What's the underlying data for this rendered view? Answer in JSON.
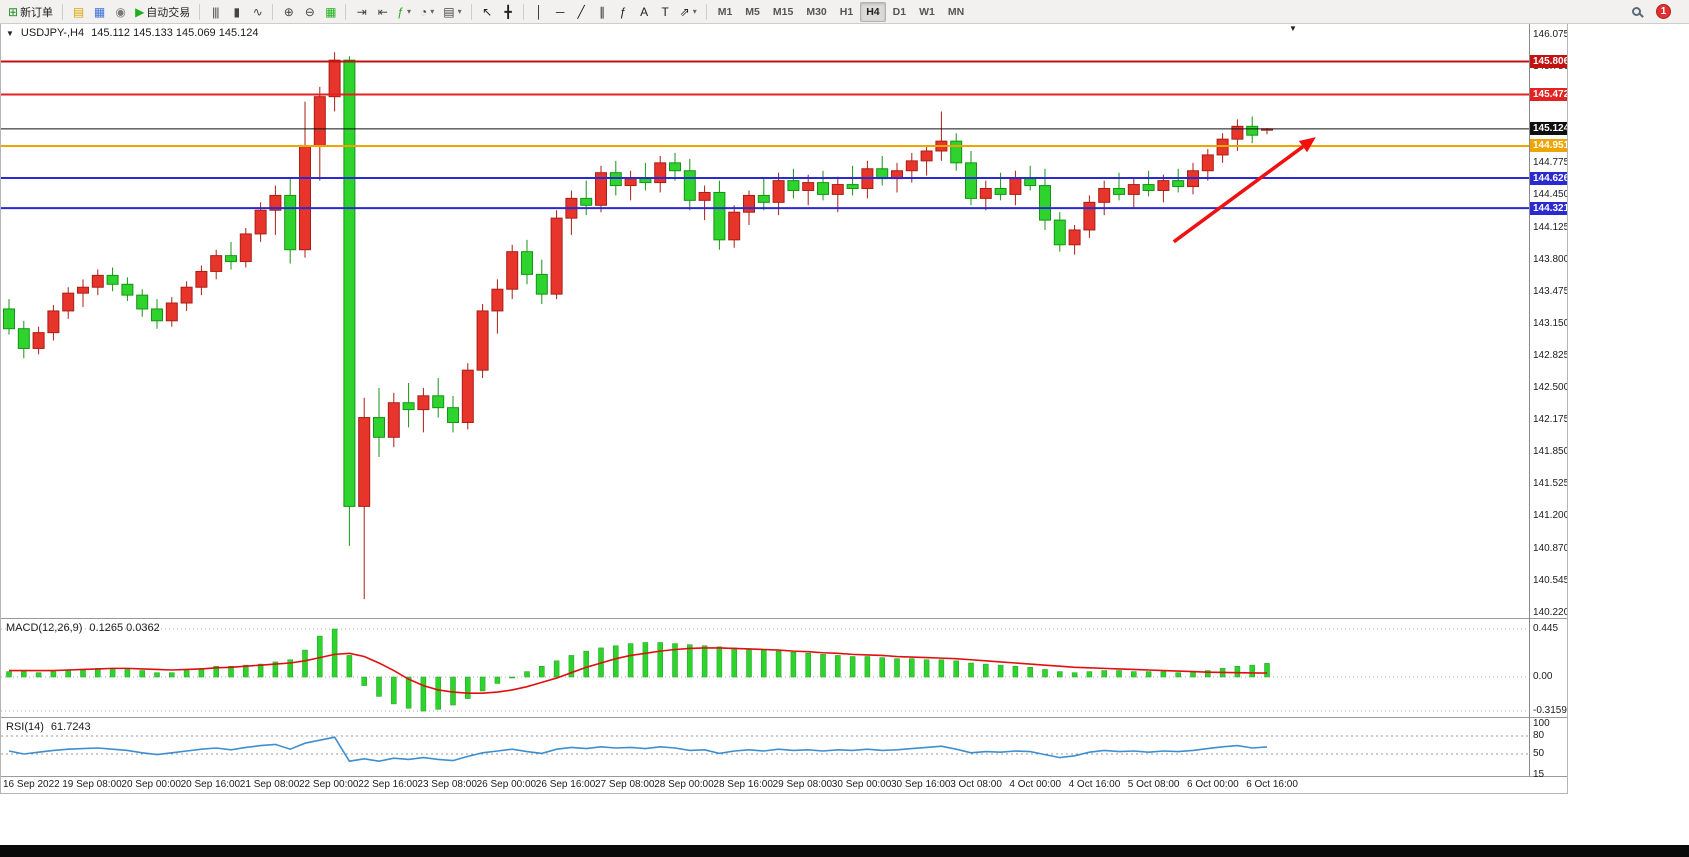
{
  "toolbar": {
    "groups": [
      {
        "name": "orders",
        "items": [
          {
            "name": "new-order",
            "icon_name": "new-order-icon",
            "glyph": "⊞",
            "glyph_color": "#1f8f1f",
            "label": "新订单"
          }
        ]
      },
      {
        "name": "windows",
        "items": [
          {
            "name": "charts-folder",
            "icon_name": "folder-icon",
            "glyph": "▤",
            "glyph_color": "#d9a400"
          },
          {
            "name": "data-window",
            "icon_name": "data-window-icon",
            "glyph": "▦",
            "glyph_color": "#3a6fd8"
          },
          {
            "name": "alerts",
            "icon_name": "sound-icon",
            "glyph": "◉",
            "glyph_color": "#7a7a7a"
          },
          {
            "name": "autotrading",
            "icon_name": "play-icon",
            "glyph": "▶",
            "glyph_color": "#1faf1f",
            "label": "自动交易"
          }
        ]
      },
      {
        "name": "chart-types",
        "items": [
          {
            "name": "bar-chart",
            "icon_name": "bar-chart-icon",
            "glyph": "|||",
            "glyph_color": "#444444"
          },
          {
            "name": "candlestick-chart",
            "icon_name": "candlestick-icon",
            "glyph": "▮",
            "glyph_color": "#444444"
          },
          {
            "name": "line-chart",
            "icon_name": "line-chart-icon",
            "glyph": "∿",
            "glyph_color": "#444444"
          }
        ]
      },
      {
        "name": "zoom",
        "items": [
          {
            "name": "zoom-in",
            "icon_name": "zoom-in-icon",
            "glyph": "⊕",
            "glyph_color": "#444444"
          },
          {
            "name": "zoom-out",
            "icon_name": "zoom-out-icon",
            "glyph": "⊖",
            "glyph_color": "#444444"
          },
          {
            "name": "tile-windows",
            "icon_name": "tile-windows-icon",
            "glyph": "▦",
            "glyph_color": "#1faf1f"
          }
        ]
      },
      {
        "name": "chart-tools",
        "items": [
          {
            "name": "auto-scroll",
            "icon_name": "auto-scroll-icon",
            "glyph": "⇥",
            "glyph_color": "#444444"
          },
          {
            "name": "chart-shift",
            "icon_name": "chart-shift-icon",
            "glyph": "⇤",
            "glyph_color": "#444444"
          },
          {
            "name": "indicators",
            "icon_name": "indicators-icon",
            "glyph": "ƒ",
            "glyph_color": "#1faf1f",
            "dropdown": true
          },
          {
            "name": "periods",
            "icon_name": "clock-icon",
            "glyph": "◔",
            "glyph_color": "#444444",
            "dropdown": true
          },
          {
            "name": "templates",
            "icon_name": "templates-icon",
            "glyph": "▤",
            "glyph_color": "#444444",
            "dropdown": true
          }
        ]
      },
      {
        "name": "pointer",
        "items": [
          {
            "name": "cursor",
            "icon_name": "cursor-icon",
            "glyph": "↖",
            "glyph_color": "#222222"
          },
          {
            "name": "crosshair",
            "icon_name": "crosshair-icon",
            "glyph": "╋",
            "glyph_color": "#222222"
          }
        ]
      },
      {
        "name": "drawing",
        "items": [
          {
            "name": "vertical-line",
            "icon_name": "vertical-line-icon",
            "glyph": "│",
            "glyph_color": "#222222"
          },
          {
            "name": "horizontal-line",
            "icon_name": "horizontal-line-icon",
            "glyph": "─",
            "glyph_color": "#222222"
          },
          {
            "name": "trendline",
            "icon_name": "trendline-icon",
            "glyph": "╱",
            "glyph_color": "#222222"
          },
          {
            "name": "equidistant-channel",
            "icon_name": "channel-icon",
            "glyph": "∥",
            "glyph_color": "#222222"
          },
          {
            "name": "fibonacci",
            "icon_name": "fibonacci-icon",
            "glyph": "ƒ",
            "glyph_color": "#222222"
          },
          {
            "name": "text",
            "icon_name": "text-icon",
            "glyph": "A",
            "glyph_color": "#222222"
          },
          {
            "name": "text-label",
            "icon_name": "text-label-icon",
            "glyph": "T",
            "glyph_color": "#222222"
          },
          {
            "name": "arrows",
            "icon_name": "arrow-objects-icon",
            "glyph": "⇗",
            "glyph_color": "#222222",
            "dropdown": true
          }
        ]
      }
    ],
    "timeframes": [
      "M1",
      "M5",
      "M15",
      "M30",
      "H1",
      "H4",
      "D1",
      "W1",
      "MN"
    ],
    "active_timeframe": "H4",
    "notification_count": "1"
  },
  "chart": {
    "title_symbol": "USDJPY-,H4",
    "title_ohlc": "145.112 145.133 145.069 145.124"
  },
  "chart_data": {
    "type": "candlestick",
    "symbol": "USDJPY-",
    "timeframe": "H4",
    "current_bar": {
      "open": 145.112,
      "high": 145.133,
      "low": 145.069,
      "close": 145.124
    },
    "up_color": "#e8352c",
    "down_color": "#2ed32e",
    "price_axis_labels": [
      "146.075",
      "145.750",
      "145.425",
      "145.100",
      "144.775",
      "144.450",
      "144.125",
      "143.800",
      "143.475",
      "143.150",
      "142.825",
      "142.500",
      "142.175",
      "141.850",
      "141.525",
      "141.200",
      "140.870",
      "140.545",
      "140.220"
    ],
    "time_axis_labels": [
      "16 Sep 2022",
      "19 Sep 08:00",
      "20 Sep 00:00",
      "20 Sep 16:00",
      "21 Sep 08:00",
      "22 Sep 00:00",
      "22 Sep 16:00",
      "23 Sep 08:00",
      "26 Sep 00:00",
      "26 Sep 16:00",
      "27 Sep 08:00",
      "28 Sep 00:00",
      "28 Sep 16:00",
      "29 Sep 08:00",
      "30 Sep 00:00",
      "30 Sep 16:00",
      "3 Oct 08:00",
      "4 Oct 00:00",
      "4 Oct 16:00",
      "5 Oct 08:00",
      "6 Oct 00:00",
      "6 Oct 16:00"
    ],
    "candles": [
      [
        143.3,
        143.4,
        143.04,
        143.1
      ],
      [
        143.1,
        143.18,
        142.8,
        142.9
      ],
      [
        142.9,
        143.12,
        142.84,
        143.06
      ],
      [
        143.06,
        143.34,
        142.98,
        143.28
      ],
      [
        143.28,
        143.52,
        143.2,
        143.46
      ],
      [
        143.46,
        143.6,
        143.32,
        143.52
      ],
      [
        143.52,
        143.7,
        143.44,
        143.64
      ],
      [
        143.64,
        143.72,
        143.48,
        143.55
      ],
      [
        143.55,
        143.62,
        143.38,
        143.44
      ],
      [
        143.44,
        143.5,
        143.22,
        143.3
      ],
      [
        143.3,
        143.4,
        143.1,
        143.18
      ],
      [
        143.18,
        143.42,
        143.12,
        143.36
      ],
      [
        143.36,
        143.58,
        143.28,
        143.52
      ],
      [
        143.52,
        143.74,
        143.44,
        143.68
      ],
      [
        143.68,
        143.9,
        143.6,
        143.84
      ],
      [
        143.84,
        143.98,
        143.7,
        143.78
      ],
      [
        143.78,
        144.12,
        143.72,
        144.06
      ],
      [
        144.06,
        144.38,
        143.98,
        144.3
      ],
      [
        144.3,
        144.55,
        144.05,
        144.45
      ],
      [
        144.45,
        144.62,
        143.76,
        143.9
      ],
      [
        143.9,
        145.4,
        143.82,
        144.95
      ],
      [
        144.95,
        145.55,
        144.6,
        145.45
      ],
      [
        145.45,
        145.9,
        145.3,
        145.82
      ],
      [
        145.82,
        145.86,
        140.9,
        141.3
      ],
      [
        141.3,
        142.4,
        140.36,
        142.2
      ],
      [
        142.2,
        142.5,
        141.8,
        142.0
      ],
      [
        142.0,
        142.45,
        141.9,
        142.35
      ],
      [
        142.35,
        142.55,
        142.1,
        142.28
      ],
      [
        142.28,
        142.5,
        142.05,
        142.42
      ],
      [
        142.42,
        142.6,
        142.2,
        142.3
      ],
      [
        142.3,
        142.42,
        142.05,
        142.15
      ],
      [
        142.15,
        142.75,
        142.08,
        142.68
      ],
      [
        142.68,
        143.35,
        142.6,
        143.28
      ],
      [
        143.28,
        143.6,
        143.05,
        143.5
      ],
      [
        143.5,
        143.95,
        143.4,
        143.88
      ],
      [
        143.88,
        144.0,
        143.55,
        143.65
      ],
      [
        143.65,
        143.8,
        143.35,
        143.45
      ],
      [
        143.45,
        144.3,
        143.4,
        144.22
      ],
      [
        144.22,
        144.5,
        144.05,
        144.42
      ],
      [
        144.42,
        144.6,
        144.25,
        144.35
      ],
      [
        144.35,
        144.75,
        144.28,
        144.68
      ],
      [
        144.68,
        144.8,
        144.45,
        144.55
      ],
      [
        144.55,
        144.7,
        144.4,
        144.62
      ],
      [
        144.62,
        144.78,
        144.5,
        144.58
      ],
      [
        144.58,
        144.85,
        144.48,
        144.78
      ],
      [
        144.78,
        144.88,
        144.6,
        144.7
      ],
      [
        144.7,
        144.82,
        144.3,
        144.4
      ],
      [
        144.4,
        144.55,
        144.2,
        144.48
      ],
      [
        144.48,
        144.6,
        143.9,
        144.0
      ],
      [
        144.0,
        144.35,
        143.92,
        144.28
      ],
      [
        144.28,
        144.5,
        144.15,
        144.45
      ],
      [
        144.45,
        144.62,
        144.3,
        144.38
      ],
      [
        144.38,
        144.68,
        144.25,
        144.6
      ],
      [
        144.6,
        144.72,
        144.42,
        144.5
      ],
      [
        144.5,
        144.66,
        144.35,
        144.58
      ],
      [
        144.58,
        144.7,
        144.4,
        144.46
      ],
      [
        144.46,
        144.64,
        144.28,
        144.56
      ],
      [
        144.56,
        144.75,
        144.45,
        144.52
      ],
      [
        144.52,
        144.8,
        144.42,
        144.72
      ],
      [
        144.72,
        144.85,
        144.55,
        144.62
      ],
      [
        144.62,
        144.78,
        144.48,
        144.7
      ],
      [
        144.7,
        144.88,
        144.58,
        144.8
      ],
      [
        144.8,
        144.95,
        144.65,
        144.9
      ],
      [
        144.9,
        145.3,
        144.8,
        145.0
      ],
      [
        145.0,
        145.08,
        144.7,
        144.78
      ],
      [
        144.78,
        144.9,
        144.35,
        144.42
      ],
      [
        144.42,
        144.6,
        144.3,
        144.52
      ],
      [
        144.52,
        144.68,
        144.4,
        144.46
      ],
      [
        144.46,
        144.7,
        144.35,
        144.62
      ],
      [
        144.62,
        144.75,
        144.5,
        144.55
      ],
      [
        144.55,
        144.72,
        144.1,
        144.2
      ],
      [
        144.2,
        144.28,
        143.88,
        143.95
      ],
      [
        143.95,
        144.15,
        143.85,
        144.1
      ],
      [
        144.1,
        144.45,
        144.02,
        144.38
      ],
      [
        144.38,
        144.6,
        144.25,
        144.52
      ],
      [
        144.52,
        144.68,
        144.4,
        144.46
      ],
      [
        144.46,
        144.62,
        144.32,
        144.56
      ],
      [
        144.56,
        144.7,
        144.44,
        144.5
      ],
      [
        144.5,
        144.66,
        144.38,
        144.6
      ],
      [
        144.6,
        144.72,
        144.48,
        144.54
      ],
      [
        144.54,
        144.78,
        144.46,
        144.7
      ],
      [
        144.7,
        144.92,
        144.6,
        144.86
      ],
      [
        144.86,
        145.08,
        144.78,
        145.02
      ],
      [
        145.02,
        145.22,
        144.9,
        145.15
      ],
      [
        145.15,
        145.25,
        144.98,
        145.06
      ],
      [
        145.112,
        145.133,
        145.069,
        145.124
      ]
    ],
    "hlines": [
      {
        "price": 145.806,
        "label": "145.806",
        "color": "#c31212",
        "width": 2
      },
      {
        "price": 145.472,
        "label": "145.472",
        "color": "#e32222",
        "width": 2
      },
      {
        "price": 145.124,
        "label": "145.124",
        "color": "#101010",
        "width": 1,
        "role": "bid"
      },
      {
        "price": 144.951,
        "label": "144.951",
        "color": "#efa500",
        "width": 2
      },
      {
        "price": 144.626,
        "label": "144.626",
        "color": "#2a2ad0",
        "width": 2
      },
      {
        "price": 144.321,
        "label": "144.321",
        "color": "#2a2ad0",
        "width": 2
      }
    ],
    "indicators": {
      "macd": {
        "title": "MACD(12,26,9)",
        "values_text": "0.1265 0.0362",
        "axis_labels": [
          "0.445",
          "0.00",
          "-0.3159"
        ],
        "histogram_color": "#2ed32e",
        "signal_color": "#e01010",
        "histogram": [
          0.05,
          0.05,
          0.04,
          0.05,
          0.06,
          0.07,
          0.08,
          0.08,
          0.07,
          0.06,
          0.04,
          0.04,
          0.06,
          0.08,
          0.1,
          0.1,
          0.11,
          0.12,
          0.14,
          0.16,
          0.25,
          0.38,
          0.445,
          0.2,
          -0.08,
          -0.18,
          -0.25,
          -0.29,
          -0.3159,
          -0.3,
          -0.26,
          -0.2,
          -0.13,
          -0.06,
          0.0,
          0.05,
          0.1,
          0.15,
          0.2,
          0.24,
          0.27,
          0.29,
          0.31,
          0.32,
          0.32,
          0.31,
          0.3,
          0.29,
          0.28,
          0.27,
          0.26,
          0.25,
          0.24,
          0.23,
          0.22,
          0.21,
          0.2,
          0.19,
          0.19,
          0.18,
          0.17,
          0.17,
          0.16,
          0.16,
          0.15,
          0.13,
          0.12,
          0.11,
          0.1,
          0.09,
          0.07,
          0.05,
          0.04,
          0.05,
          0.06,
          0.06,
          0.05,
          0.05,
          0.05,
          0.04,
          0.05,
          0.06,
          0.08,
          0.1,
          0.11,
          0.1265
        ],
        "signal": [
          0.06,
          0.06,
          0.06,
          0.06,
          0.065,
          0.07,
          0.075,
          0.08,
          0.08,
          0.075,
          0.07,
          0.065,
          0.07,
          0.075,
          0.085,
          0.09,
          0.1,
          0.11,
          0.12,
          0.13,
          0.15,
          0.18,
          0.21,
          0.22,
          0.19,
          0.13,
          0.06,
          -0.02,
          -0.08,
          -0.12,
          -0.14,
          -0.15,
          -0.15,
          -0.14,
          -0.12,
          -0.09,
          -0.05,
          -0.01,
          0.04,
          0.09,
          0.13,
          0.17,
          0.2,
          0.22,
          0.24,
          0.255,
          0.265,
          0.27,
          0.27,
          0.265,
          0.26,
          0.255,
          0.25,
          0.24,
          0.235,
          0.225,
          0.22,
          0.21,
          0.205,
          0.2,
          0.19,
          0.185,
          0.18,
          0.175,
          0.17,
          0.16,
          0.15,
          0.14,
          0.13,
          0.12,
          0.11,
          0.1,
          0.09,
          0.085,
          0.08,
          0.075,
          0.07,
          0.065,
          0.06,
          0.055,
          0.05,
          0.045,
          0.042,
          0.04,
          0.038,
          0.0362
        ]
      },
      "rsi": {
        "title": "RSI(14)",
        "value_text": "61.7243",
        "axis_labels": [
          "100",
          "80",
          "50",
          "15"
        ],
        "levels": [
          80,
          50
        ],
        "line_color": "#3e8fd0",
        "values": [
          55,
          50,
          53,
          56,
          58,
          59,
          60,
          58,
          56,
          52,
          49,
          52,
          55,
          58,
          60,
          57,
          61,
          64,
          66,
          58,
          68,
          73,
          78,
          38,
          42,
          38,
          43,
          41,
          44,
          41,
          39,
          46,
          52,
          55,
          58,
          54,
          51,
          58,
          61,
          59,
          62,
          60,
          61,
          59,
          62,
          60,
          56,
          57,
          51,
          55,
          57,
          55,
          58,
          56,
          57,
          55,
          57,
          56,
          58,
          56,
          57,
          59,
          61,
          63,
          58,
          52,
          54,
          53,
          55,
          54,
          49,
          44,
          47,
          53,
          56,
          54,
          55,
          53,
          55,
          54,
          56,
          59,
          62,
          64,
          60,
          61.72
        ]
      }
    },
    "annotation_arrow": {
      "color": "#f01010",
      "x1_index": 78.7,
      "y1_price": 143.98,
      "x2_index": 88.3,
      "y2_price": 145.04
    }
  }
}
